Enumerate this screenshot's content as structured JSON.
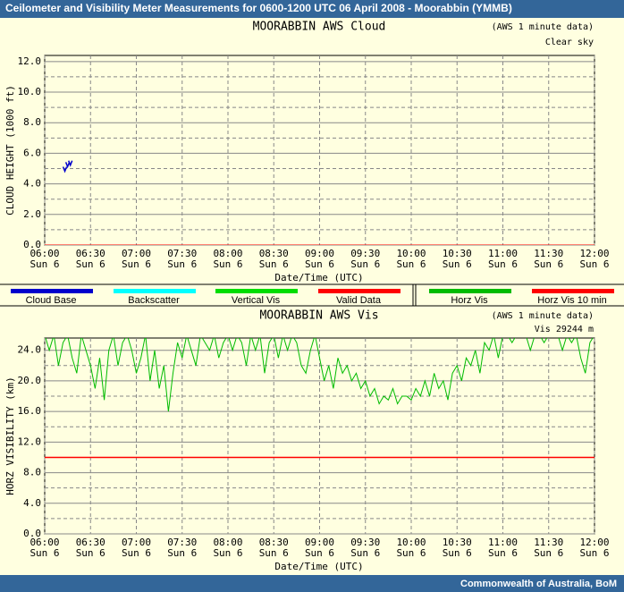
{
  "header": {
    "title": "Ceilometer and Visibility Meter Measurements for 0600-1200 UTC  06 April 2008 - Moorabbin (YMMB)"
  },
  "chart_data": [
    {
      "type": "scatter",
      "title": "MOORABBIN AWS Cloud",
      "note": "(AWS 1 minute data)",
      "status": "Clear sky",
      "ylabel": "CLOUD HEIGHT (1000 ft)",
      "xlabel": "Date/Time (UTC)",
      "xlim": [
        6,
        12
      ],
      "ylim": [
        0,
        12.4
      ],
      "xticks": [
        {
          "value": 6,
          "label": "06:00"
        },
        {
          "value": 6.5,
          "label": "06:30"
        },
        {
          "value": 7,
          "label": "07:00"
        },
        {
          "value": 7.5,
          "label": "07:30"
        },
        {
          "value": 8,
          "label": "08:00"
        },
        {
          "value": 8.5,
          "label": "08:30"
        },
        {
          "value": 9,
          "label": "09:00"
        },
        {
          "value": 9.5,
          "label": "09:30"
        },
        {
          "value": 10,
          "label": "10:00"
        },
        {
          "value": 10.5,
          "label": "10:30"
        },
        {
          "value": 11,
          "label": "11:00"
        },
        {
          "value": 11.5,
          "label": "11:30"
        },
        {
          "value": 12,
          "label": "12:00"
        }
      ],
      "xtick_sublabel": "Sun 6",
      "yticks": [
        {
          "value": 0,
          "label": "0.0"
        },
        {
          "value": 2,
          "label": "2.0"
        },
        {
          "value": 4,
          "label": "4.0"
        },
        {
          "value": 6,
          "label": "6.0"
        },
        {
          "value": 8,
          "label": "8.0"
        },
        {
          "value": 10,
          "label": "10.0"
        },
        {
          "value": 12,
          "label": "12.0"
        }
      ],
      "minor_yticks": [
        1,
        3,
        5,
        7,
        9,
        11
      ],
      "series": [
        {
          "color": "#0000cc",
          "x": [
            6.22,
            6.25,
            6.28
          ],
          "values": [
            5.0,
            5.3,
            5.4
          ]
        },
        {
          "color": "#ff0000",
          "x": [
            6,
            12
          ],
          "values": [
            0,
            0
          ],
          "style": "line"
        }
      ]
    },
    {
      "type": "line",
      "title": "MOORABBIN AWS Vis",
      "note": "(AWS 1 minute data)",
      "status": "Vis 29244 m",
      "ylabel": "HORZ VISIBILITY (km)",
      "xlabel": "Date/Time (UTC)",
      "xlim": [
        6,
        12
      ],
      "ylim": [
        0,
        25.6
      ],
      "xticks": [
        {
          "value": 6,
          "label": "06:00"
        },
        {
          "value": 6.5,
          "label": "06:30"
        },
        {
          "value": 7,
          "label": "07:00"
        },
        {
          "value": 7.5,
          "label": "07:30"
        },
        {
          "value": 8,
          "label": "08:00"
        },
        {
          "value": 8.5,
          "label": "08:30"
        },
        {
          "value": 9,
          "label": "09:00"
        },
        {
          "value": 9.5,
          "label": "09:30"
        },
        {
          "value": 10,
          "label": "10:00"
        },
        {
          "value": 10.5,
          "label": "10:30"
        },
        {
          "value": 11,
          "label": "11:00"
        },
        {
          "value": 11.5,
          "label": "11:30"
        },
        {
          "value": 12,
          "label": "12:00"
        }
      ],
      "xtick_sublabel": "Sun 6",
      "yticks": [
        {
          "value": 0,
          "label": "0.0"
        },
        {
          "value": 4,
          "label": "4.0"
        },
        {
          "value": 8,
          "label": "8.0"
        },
        {
          "value": 12,
          "label": "12.0"
        },
        {
          "value": 16,
          "label": "16.0"
        },
        {
          "value": 20,
          "label": "20.0"
        },
        {
          "value": 24,
          "label": "24.0"
        }
      ],
      "minor_yticks": [
        2,
        6,
        10,
        14,
        18,
        22
      ],
      "threshold": {
        "value": 10,
        "color": "#ff0000"
      },
      "series": [
        {
          "color": "#00bb00",
          "style": "line",
          "x": [
            6,
            6.05,
            6.1,
            6.15,
            6.2,
            6.25,
            6.3,
            6.35,
            6.4,
            6.45,
            6.5,
            6.55,
            6.6,
            6.65,
            6.7,
            6.75,
            6.8,
            6.85,
            6.9,
            6.95,
            7,
            7.05,
            7.1,
            7.15,
            7.2,
            7.25,
            7.3,
            7.35,
            7.4,
            7.45,
            7.5,
            7.55,
            7.6,
            7.65,
            7.7,
            7.75,
            7.8,
            7.85,
            7.9,
            7.95,
            8,
            8.05,
            8.1,
            8.15,
            8.2,
            8.25,
            8.3,
            8.35,
            8.4,
            8.45,
            8.5,
            8.55,
            8.6,
            8.65,
            8.7,
            8.75,
            8.8,
            8.85,
            8.9,
            8.95,
            9,
            9.05,
            9.1,
            9.15,
            9.2,
            9.25,
            9.3,
            9.35,
            9.4,
            9.45,
            9.5,
            9.55,
            9.6,
            9.65,
            9.7,
            9.75,
            9.8,
            9.85,
            9.9,
            9.95,
            10,
            10.05,
            10.1,
            10.15,
            10.2,
            10.25,
            10.3,
            10.35,
            10.4,
            10.45,
            10.5,
            10.55,
            10.6,
            10.65,
            10.7,
            10.75,
            10.8,
            10.85,
            10.9,
            10.95,
            11,
            11.05,
            11.1,
            11.15,
            11.2,
            11.25,
            11.3,
            11.35,
            11.4,
            11.45,
            11.5,
            11.55,
            11.6,
            11.65,
            11.7,
            11.75,
            11.8,
            11.85,
            11.9,
            11.95,
            12
          ],
          "values": [
            26,
            24,
            26,
            22,
            25,
            26,
            23,
            21,
            26,
            24,
            22,
            19,
            23,
            17.5,
            24,
            26,
            22,
            25,
            26,
            24,
            21,
            23,
            26,
            20,
            24,
            19,
            22,
            16,
            21,
            25,
            23,
            26,
            24,
            22,
            26,
            25,
            24,
            26,
            23,
            25,
            26,
            24,
            26,
            25,
            22,
            26,
            24,
            26,
            21,
            25,
            26,
            23,
            26,
            24,
            26,
            25,
            22,
            21,
            24,
            26,
            23,
            20,
            22,
            19,
            23,
            21,
            22,
            20,
            21,
            19,
            20,
            18,
            19,
            17,
            18,
            17.5,
            19,
            17,
            18,
            18,
            17.5,
            19,
            18,
            20,
            18,
            21,
            19,
            20,
            17.5,
            21,
            22,
            20,
            23,
            22,
            24,
            21,
            25,
            24,
            26,
            23,
            26,
            26,
            25,
            26,
            26,
            26,
            24,
            26,
            26,
            25,
            26,
            26,
            26,
            24,
            26,
            25,
            26,
            23,
            21,
            25,
            26
          ]
        }
      ]
    }
  ],
  "legend": [
    {
      "name": "Cloud Base",
      "color": "#0000cc"
    },
    {
      "name": "Backscatter",
      "color": "#00ffff"
    },
    {
      "name": "Vertical Vis",
      "color": "#00dd00"
    },
    {
      "name": "Valid Data",
      "color": "#ff0000"
    },
    {
      "name": "Horz Vis",
      "color": "#00bb00"
    },
    {
      "name": "Horz Vis 10 min",
      "color": "#ff0000"
    }
  ],
  "footer": {
    "text": "Commonwealth of  Australia, BoM"
  }
}
